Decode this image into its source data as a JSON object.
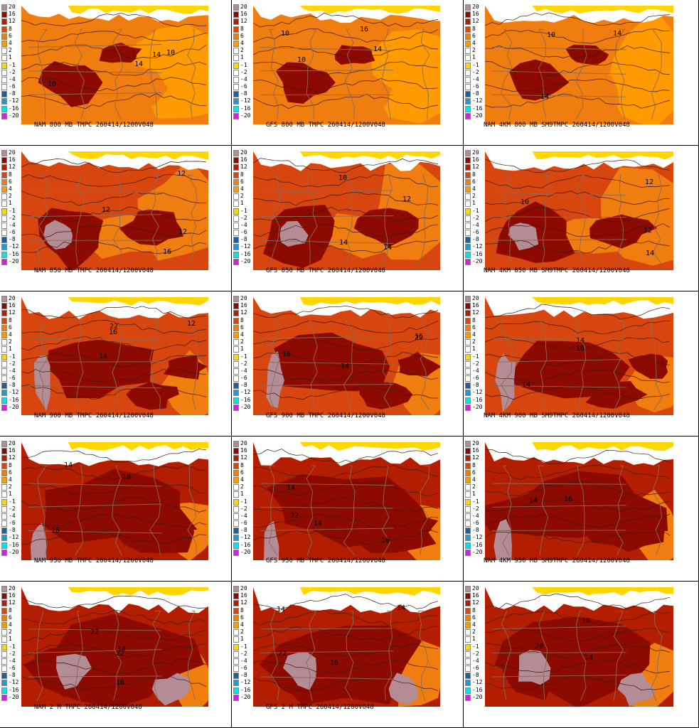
{
  "legend": {
    "levels": [
      "20",
      "16",
      "12",
      "8",
      "6",
      "4",
      "2",
      "1",
      "-1",
      "-2",
      "-4",
      "-6",
      "-8",
      "-12",
      "-16",
      "-20"
    ],
    "colors": [
      "#b48c96",
      "#8c0a00",
      "#b41e00",
      "#d7460f",
      "#f07d0f",
      "#ff9b00",
      "#ffffff",
      "#ffffff",
      "#ffd700",
      "#ffffff",
      "#ffffff",
      "#ffffff",
      "#1a5fa0",
      "#1e9bd7",
      "#00e6e6",
      "#d71ee6"
    ]
  },
  "colors": {
    "dark_red": "#8c0a00",
    "red": "#b41e00",
    "red_orange": "#d7460f",
    "orange": "#f07d0f",
    "light_orange": "#ff9b00",
    "yellow": "#ffd700",
    "mauve": "#b48c96",
    "state_lines": "#8b6a5a",
    "contour": "#3a1a10"
  },
  "panels": [
    {
      "caption": "NAM 800  MB TMPC 260414/1200V048",
      "labels": [
        "14",
        "10",
        "10",
        "14"
      ]
    },
    {
      "caption": "GFS 800  MB TMPC 260414/1200V048",
      "labels": [
        "14",
        "10",
        "10",
        "16"
      ]
    },
    {
      "caption": "NAM 4KM 800  MB SM9TMPC 260414/1200V048",
      "labels": [
        "14",
        "10",
        "14"
      ]
    },
    {
      "caption": "NAM 850  MB TMPC 260414/1200V048",
      "labels": [
        "12",
        "12",
        "12",
        "16"
      ]
    },
    {
      "caption": "GFS 850  MB TMPC 260414/1200V048",
      "labels": [
        "14",
        "14",
        "10",
        "12"
      ]
    },
    {
      "caption": "NAM 4KM 850  MB SM9TMPC 260414/1200V048",
      "labels": [
        "10",
        "14",
        "12",
        "12"
      ]
    },
    {
      "caption": "NAM 900  MB TMPC 260414/1200V048",
      "labels": [
        "22",
        "16",
        "12",
        "14"
      ]
    },
    {
      "caption": "GFS 900  MB TMPC 260414/1200V048",
      "labels": [
        "22",
        "16",
        "16",
        "14"
      ]
    },
    {
      "caption": "NAM 4KM 900  MB SM9TMPC 260414/1200V048",
      "labels": [
        "16",
        "14",
        "14"
      ]
    },
    {
      "caption": "NAM 950  MB TMPC 260414/1200V048",
      "labels": [
        "16",
        "14",
        "18"
      ]
    },
    {
      "caption": "GFS 950  MB TMPC 260414/1200V048",
      "labels": [
        "22",
        "14",
        "16",
        "14"
      ]
    },
    {
      "caption": "NAM 4KM 950  MB SM9TMPC 260414/1200V048",
      "labels": [
        "14",
        "16"
      ]
    },
    {
      "caption": "NAM 2  M  TMPC 260414/1200V048",
      "labels": [
        "22",
        "16",
        "14",
        "22"
      ]
    },
    {
      "caption": "GFS 2  M  TMPC 260414/1200V048",
      "labels": [
        "14",
        "14",
        "22",
        "16"
      ]
    },
    {
      "caption": "",
      "labels": [
        "20",
        "16",
        "14"
      ]
    }
  ]
}
